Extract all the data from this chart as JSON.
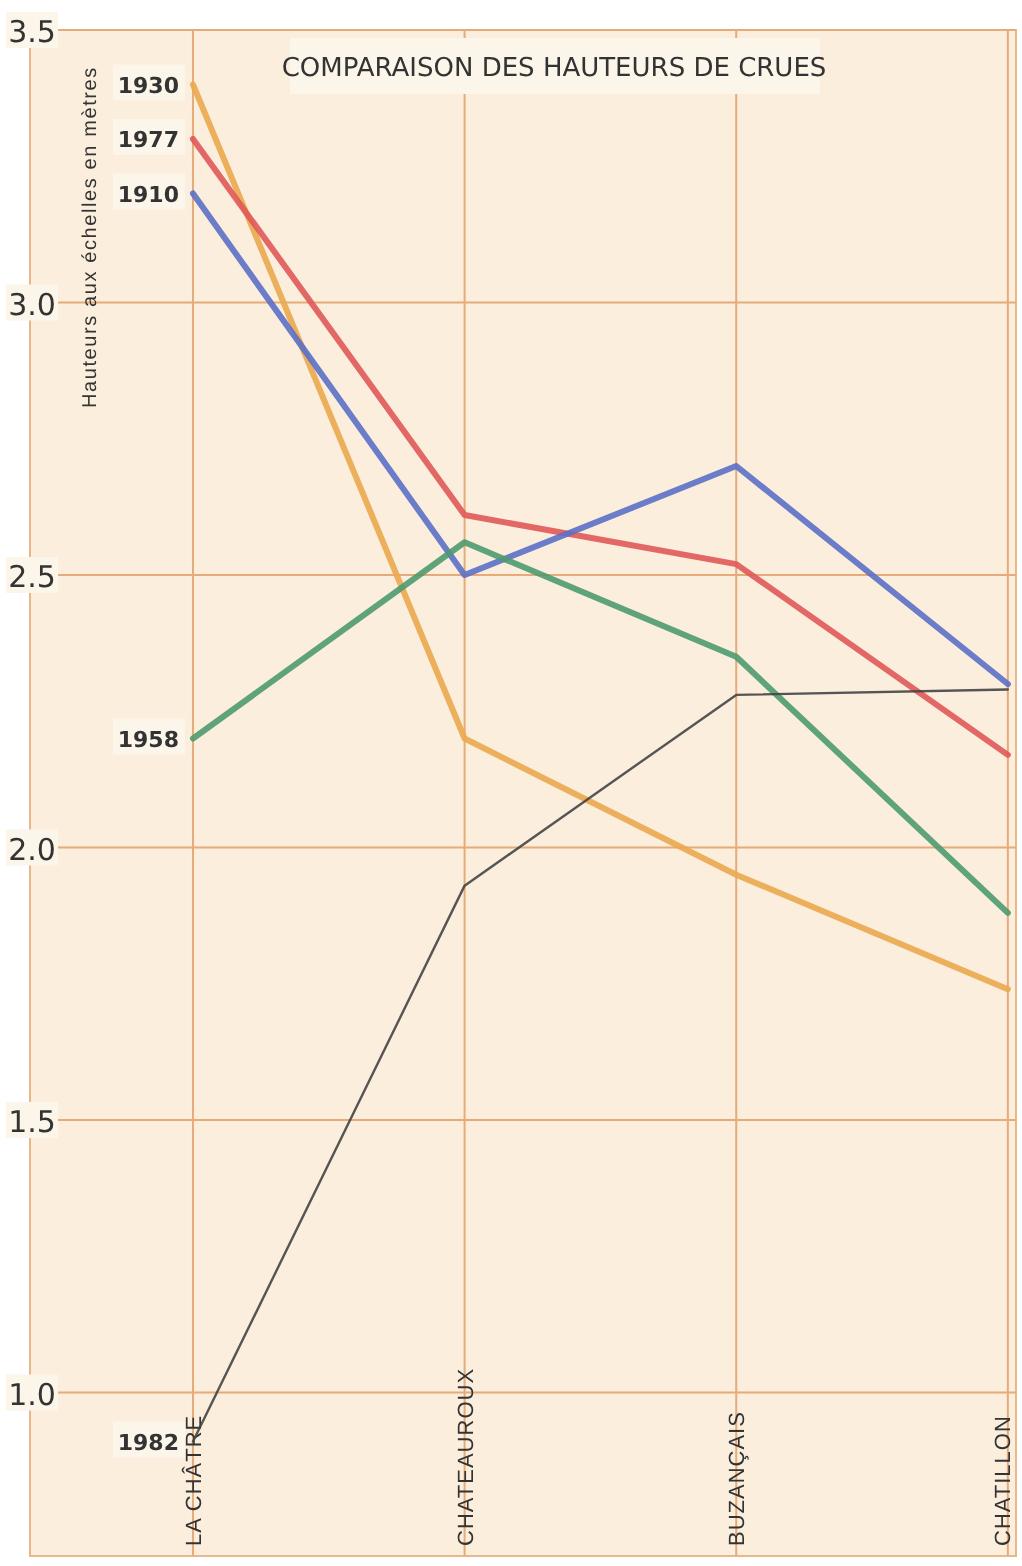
{
  "chart_data": {
    "type": "line",
    "title": "COMPARAISON DES HAUTEURS DE CRUES",
    "ylabel": "Hauteurs aux échelles en mètres",
    "categories": [
      "LA CHÂTRE",
      "CHATEAUROUX",
      "BUZANÇAIS",
      "CHATILLON"
    ],
    "series": [
      {
        "name": "1930",
        "color": "#eaa84e",
        "values": [
          3.4,
          2.2,
          1.95,
          1.74
        ]
      },
      {
        "name": "1977",
        "color": "#e05858",
        "values": [
          3.3,
          2.61,
          2.52,
          2.17
        ]
      },
      {
        "name": "1910",
        "color": "#5b6fc6",
        "values": [
          3.2,
          2.5,
          2.7,
          2.3
        ]
      },
      {
        "name": "1958",
        "color": "#4e9a70",
        "values": [
          2.2,
          2.56,
          2.35,
          1.88
        ]
      },
      {
        "name": "1982",
        "color": "#444444",
        "values": [
          0.91,
          1.93,
          2.28,
          2.29
        ]
      }
    ],
    "ylim": [
      0.7,
      3.5
    ],
    "yticks": [
      {
        "value": 1,
        "label": "1.0"
      },
      1.5,
      {
        "value": 2,
        "label": "2.0"
      },
      2.5,
      {
        "value": 3,
        "label": "3.0"
      },
      3.5
    ],
    "grid": true,
    "legend": false,
    "marker": "none",
    "line_style": "solid"
  }
}
